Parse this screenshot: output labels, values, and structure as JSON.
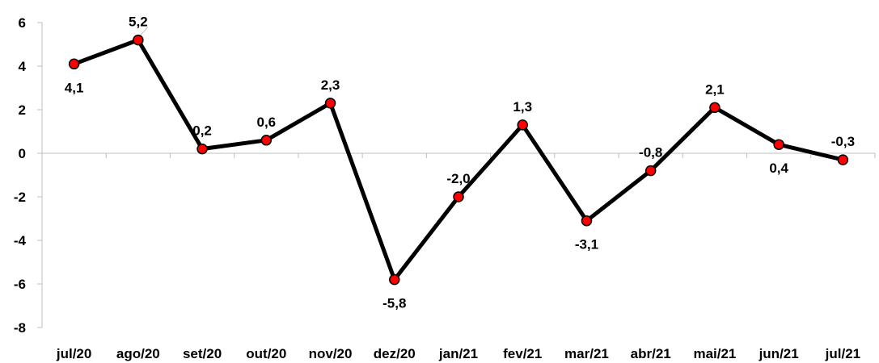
{
  "chart_data": {
    "type": "line",
    "categories": [
      "jul/20",
      "ago/20",
      "set/20",
      "out/20",
      "nov/20",
      "dez/20",
      "jan/21",
      "fev/21",
      "mar/21",
      "abr/21",
      "mai/21",
      "jun/21",
      "jul/21"
    ],
    "series": [
      {
        "values": [
          4.1,
          5.2,
          0.2,
          0.6,
          2.3,
          -5.8,
          -2.0,
          1.3,
          -3.1,
          -0.8,
          2.1,
          0.4,
          -0.3
        ],
        "data_labels": [
          "4,1",
          "5,2",
          "0,2",
          "0,6",
          "2,3",
          "-5,8",
          "-2,0",
          "1,3",
          "-3,1",
          "-0,8",
          "2,1",
          "0,4",
          "-0,3"
        ],
        "label_positions": [
          "below",
          "above",
          "above",
          "above",
          "above",
          "below",
          "above",
          "above",
          "below",
          "above",
          "above",
          "below",
          "above"
        ]
      }
    ],
    "ylim": [
      -8,
      6
    ],
    "yticks": [
      6,
      4,
      2,
      0,
      -2,
      -4,
      -6,
      -8
    ],
    "ytick_labels": [
      "6",
      "4",
      "2",
      "0",
      "-2",
      "-4",
      "-6",
      "-8"
    ],
    "title": "",
    "xlabel": "",
    "ylabel": "",
    "grid": false,
    "colors": {
      "line": "#000000",
      "marker_fill": "#ff0000",
      "marker_stroke": "#000000",
      "axis": "#bfbfbf"
    }
  }
}
